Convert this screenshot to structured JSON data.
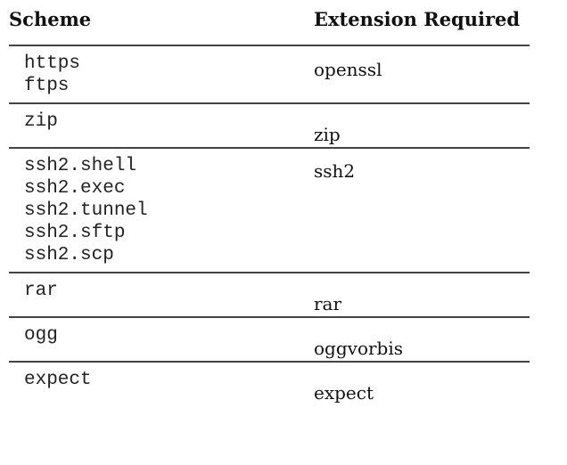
{
  "table": {
    "headers": {
      "scheme": "Scheme",
      "extension": "Extension Required"
    },
    "rows": [
      {
        "schemes": [
          "https",
          "ftps"
        ],
        "extension": "openssl"
      },
      {
        "schemes": [
          "zip"
        ],
        "extension": "zip"
      },
      {
        "schemes": [
          "ssh2.shell",
          "ssh2.exec",
          "ssh2.tunnel",
          "ssh2.sftp",
          "ssh2.scp"
        ],
        "extension": "ssh2"
      },
      {
        "schemes": [
          "rar"
        ],
        "extension": "rar"
      },
      {
        "schemes": [
          "ogg"
        ],
        "extension": "oggvorbis"
      },
      {
        "schemes": [
          "expect"
        ],
        "extension": "expect"
      }
    ]
  }
}
